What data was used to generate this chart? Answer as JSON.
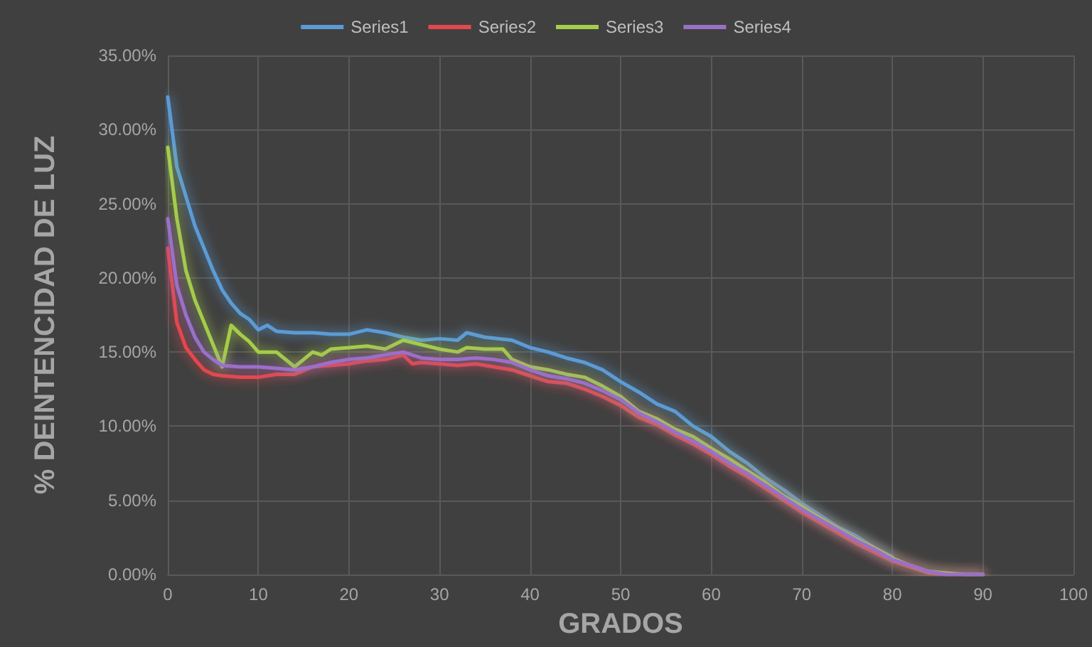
{
  "chart_data": {
    "type": "line",
    "xlabel": "GRADOS",
    "ylabel": "% DEINTENCIDAD DE LUZ",
    "legend": "top",
    "grid": true,
    "marker": "none",
    "line_style": "solid",
    "xlim": [
      0,
      100
    ],
    "xticks": [
      0,
      10,
      20,
      30,
      40,
      50,
      60,
      70,
      80,
      90,
      100
    ],
    "ylim": [
      0,
      35
    ],
    "yticks": [
      {
        "value": 0,
        "label": "0.00%"
      },
      {
        "value": 5,
        "label": "5.00%"
      },
      {
        "value": 10,
        "label": "10.00%"
      },
      {
        "value": 15,
        "label": "15.00%"
      },
      {
        "value": 20,
        "label": "20.00%"
      },
      {
        "value": 25,
        "label": "25.00%"
      },
      {
        "value": 30,
        "label": "30.00%"
      },
      {
        "value": 35,
        "label": "35.00%"
      }
    ],
    "series": [
      {
        "name": "Series1",
        "color": "#5b9bd5",
        "x": [
          0,
          1,
          2,
          3,
          4,
          5,
          6,
          7,
          8,
          9,
          10,
          11,
          12,
          14,
          16,
          18,
          20,
          22,
          24,
          26,
          28,
          30,
          32,
          33,
          35,
          38,
          40,
          42,
          44,
          46,
          48,
          50,
          52,
          54,
          56,
          58,
          60,
          62,
          64,
          66,
          68,
          70,
          72,
          74,
          76,
          78,
          80
        ],
        "values": [
          32.2,
          27.5,
          25.5,
          23.5,
          22,
          20.5,
          19.2,
          18.3,
          17.6,
          17.2,
          16.5,
          16.8,
          16.4,
          16.3,
          16.3,
          16.2,
          16.2,
          16.5,
          16.3,
          16.0,
          15.8,
          15.9,
          15.8,
          16.3,
          16.0,
          15.8,
          15.3,
          15.0,
          14.6,
          14.3,
          13.8,
          13.0,
          12.3,
          11.5,
          11.0,
          10.0,
          9.3,
          8.3,
          7.5,
          6.5,
          5.7,
          4.8,
          4.0,
          3.2,
          2.6,
          1.8,
          1.2
        ]
      },
      {
        "name": "Series2",
        "color": "#e4474c",
        "x": [
          0,
          1,
          2,
          3,
          4,
          5,
          6,
          8,
          10,
          12,
          14,
          16,
          18,
          20,
          22,
          24,
          26,
          27,
          28,
          30,
          32,
          34,
          36,
          38,
          40,
          42,
          44,
          46,
          48,
          50,
          52,
          54,
          56,
          58,
          60,
          62,
          64,
          66,
          68,
          70,
          72,
          74,
          76,
          78,
          80,
          82,
          84,
          86,
          88,
          90
        ],
        "values": [
          22,
          17,
          15.3,
          14.5,
          13.8,
          13.5,
          13.4,
          13.3,
          13.3,
          13.5,
          13.5,
          14.0,
          14.1,
          14.2,
          14.4,
          14.5,
          14.8,
          14.2,
          14.3,
          14.2,
          14.1,
          14.2,
          14.0,
          13.8,
          13.4,
          13.0,
          12.9,
          12.5,
          12.0,
          11.4,
          10.6,
          10.1,
          9.4,
          8.8,
          8.1,
          7.3,
          6.6,
          5.8,
          5.0,
          4.2,
          3.5,
          2.8,
          2.1,
          1.5,
          0.9,
          0.5,
          0.1,
          0,
          0,
          0
        ]
      },
      {
        "name": "Series3",
        "color": "#a5cd4a",
        "x": [
          0,
          1,
          2,
          3,
          4,
          5,
          6,
          7,
          8,
          9,
          10,
          12,
          14,
          15,
          16,
          17,
          18,
          20,
          22,
          24,
          26,
          28,
          30,
          32,
          33,
          35,
          37,
          38,
          40,
          42,
          44,
          46,
          48,
          50,
          52,
          54,
          56,
          58,
          60,
          62,
          64,
          66,
          68,
          70,
          72,
          74,
          76,
          78,
          80,
          82,
          84,
          86,
          88,
          90
        ],
        "values": [
          28.8,
          24,
          20.5,
          18.5,
          17,
          15.5,
          14.0,
          16.8,
          16.2,
          15.7,
          15.0,
          15.0,
          14.0,
          14.5,
          15.0,
          14.8,
          15.2,
          15.3,
          15.4,
          15.2,
          15.8,
          15.5,
          15.2,
          15.0,
          15.3,
          15.2,
          15.2,
          14.5,
          14.0,
          13.8,
          13.5,
          13.3,
          12.7,
          12.0,
          11.0,
          10.5,
          9.8,
          9.3,
          8.5,
          7.8,
          7.0,
          6.2,
          5.3,
          4.6,
          3.8,
          3.1,
          2.4,
          1.8,
          1.1,
          0.6,
          0.2,
          0.1,
          0,
          0
        ]
      },
      {
        "name": "Series4",
        "color": "#9a6fc8",
        "x": [
          0,
          1,
          2,
          3,
          4,
          5,
          6,
          8,
          10,
          12,
          14,
          16,
          18,
          20,
          22,
          24,
          26,
          28,
          30,
          32,
          34,
          36,
          38,
          40,
          42,
          44,
          46,
          48,
          50,
          52,
          54,
          56,
          58,
          60,
          62,
          64,
          66,
          68,
          70,
          72,
          74,
          76,
          78,
          80,
          82,
          84,
          86,
          88,
          90
        ],
        "values": [
          24,
          19.5,
          17.5,
          16,
          15,
          14.5,
          14.1,
          14.0,
          14.0,
          13.9,
          13.8,
          14.0,
          14.3,
          14.5,
          14.6,
          14.8,
          15.0,
          14.6,
          14.5,
          14.5,
          14.6,
          14.5,
          14.3,
          13.8,
          13.4,
          13.2,
          12.9,
          12.4,
          11.8,
          10.9,
          10.3,
          9.6,
          9.0,
          8.3,
          7.5,
          6.8,
          6.0,
          5.2,
          4.4,
          3.7,
          3.0,
          2.3,
          1.7,
          1.0,
          0.6,
          0.2,
          0,
          0,
          0
        ]
      }
    ]
  }
}
